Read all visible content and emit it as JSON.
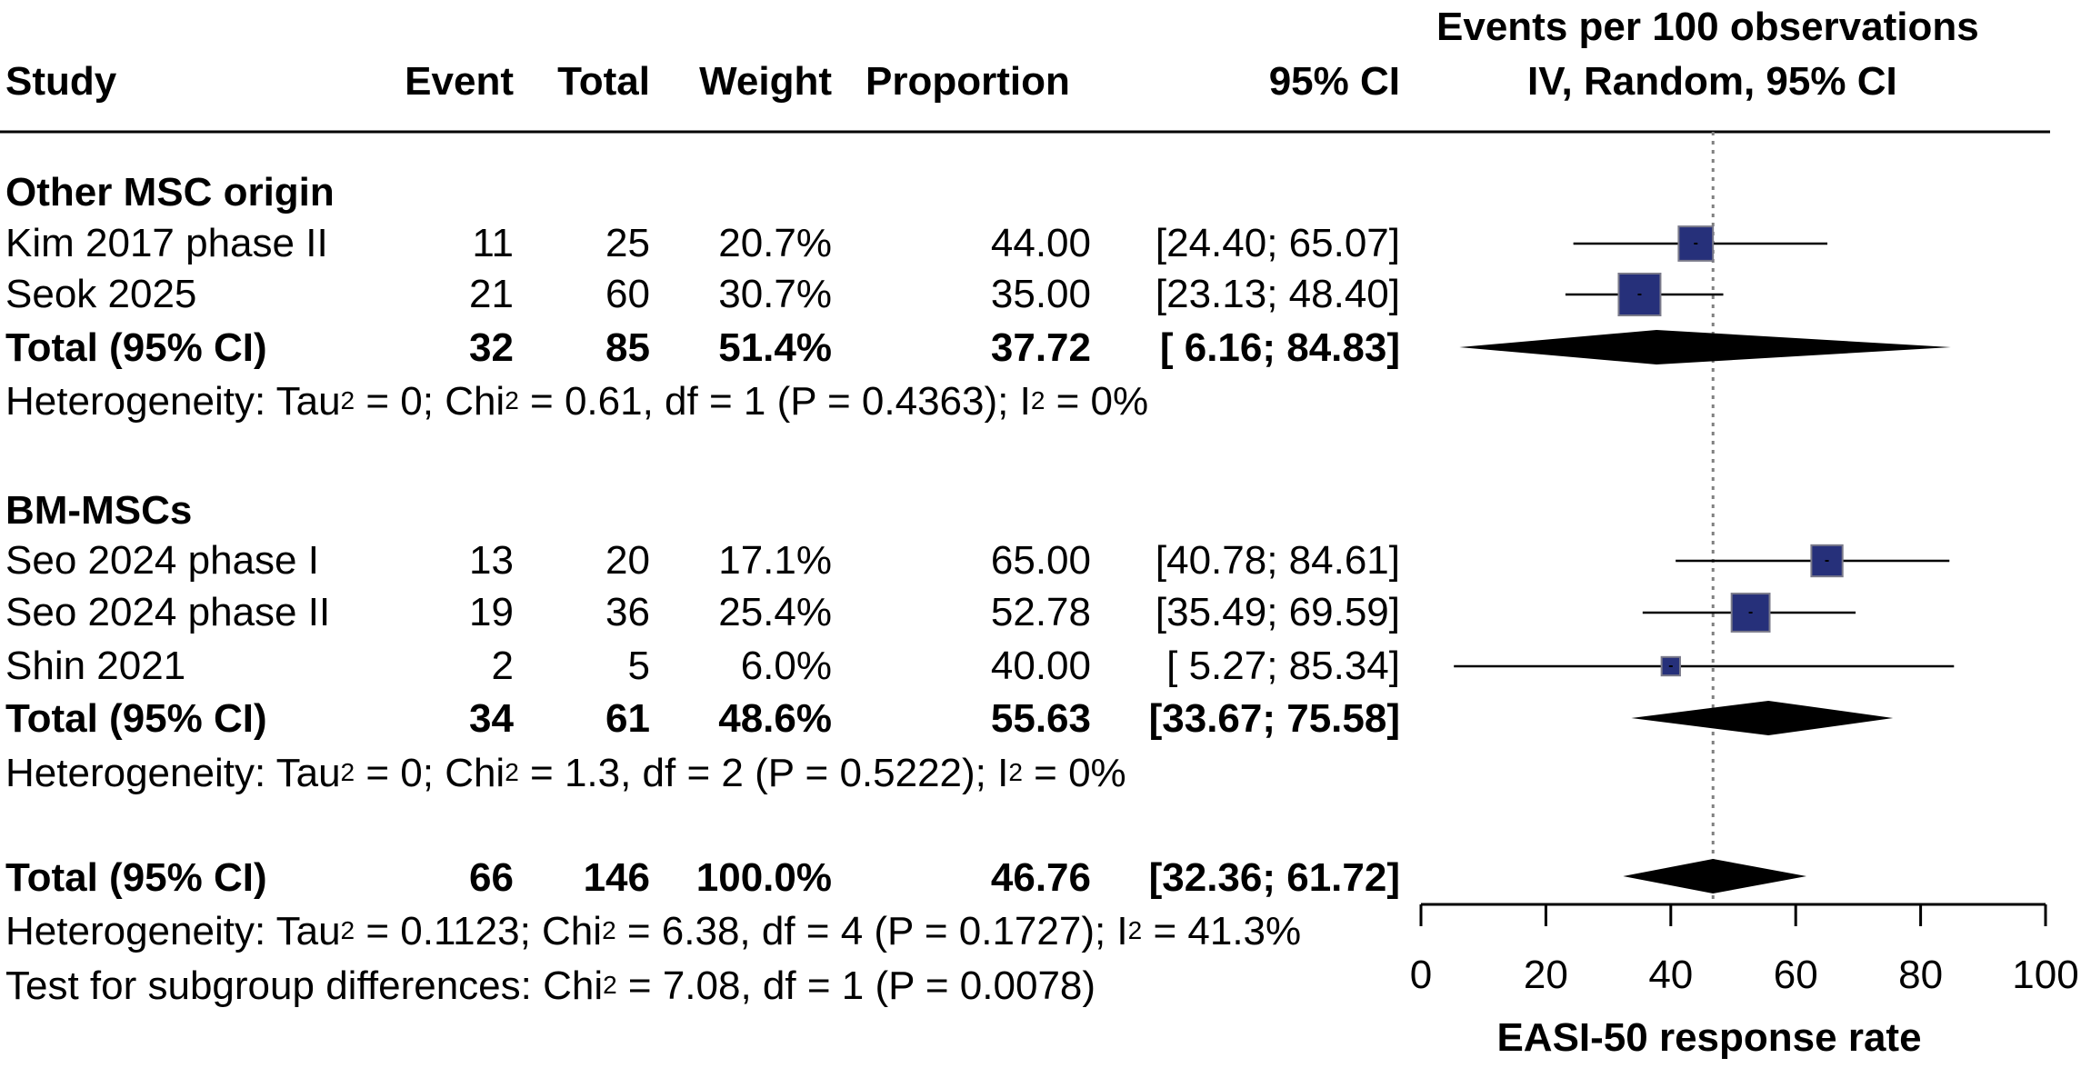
{
  "headers": {
    "study": "Study",
    "event": "Event",
    "total": "Total",
    "weight": "Weight",
    "proportion": "Proportion",
    "ci": "95% CI",
    "plot_line1": "Events per 100 observations",
    "plot_line2": "IV, Random, 95% CI"
  },
  "groups": [
    {
      "name": "Other MSC origin",
      "rows": [
        {
          "study": "Kim 2017 phase II",
          "event": "11",
          "total": "25",
          "weight": "20.7%",
          "proportion": "44.00",
          "ci": "[24.40; 65.07]"
        },
        {
          "study": "Seok 2025",
          "event": "21",
          "total": "60",
          "weight": "30.7%",
          "proportion": "35.00",
          "ci": "[23.13; 48.40]"
        }
      ],
      "total": {
        "label": "Total (95% CI)",
        "event": "32",
        "total": "85",
        "weight": "51.4%",
        "proportion": "37.72",
        "ci": "[ 6.16; 84.83]"
      },
      "het": {
        "p1": "Heterogeneity: Tau",
        "p2": " = 0; Chi",
        "p3": " = 0.61, df = 1 (P = 0.4363); I",
        "p4": " = 0%",
        "sup": "2"
      }
    },
    {
      "name": "BM-MSCs",
      "rows": [
        {
          "study": "Seo 2024 phase I",
          "event": "13",
          "total": "20",
          "weight": "17.1%",
          "proportion": "65.00",
          "ci": "[40.78; 84.61]"
        },
        {
          "study": "Seo 2024 phase II",
          "event": "19",
          "total": "36",
          "weight": "25.4%",
          "proportion": "52.78",
          "ci": "[35.49; 69.59]"
        },
        {
          "study": "Shin 2021",
          "event": "2",
          "total": "5",
          "weight": "6.0%",
          "proportion": "40.00",
          "ci": "[ 5.27; 85.34]"
        }
      ],
      "total": {
        "label": "Total (95% CI)",
        "event": "34",
        "total": "61",
        "weight": "48.6%",
        "proportion": "55.63",
        "ci": "[33.67; 75.58]"
      },
      "het": {
        "p1": "Heterogeneity: Tau",
        "p2": " = 0; Chi",
        "p3": " = 1.3, df = 2 (P = 0.5222); I",
        "p4": " = 0%",
        "sup": "2"
      }
    }
  ],
  "overall": {
    "label": "Total (95% CI)",
    "event": "66",
    "total": "146",
    "weight": "100.0%",
    "proportion": "46.76",
    "ci": "[32.36; 61.72]",
    "het": {
      "p1": "Heterogeneity: Tau",
      "p2": " = 0.1123; Chi",
      "p3": " = 6.38, df = 4 (P = 0.1727); I",
      "p4": " = 41.3%",
      "sup": "2"
    },
    "test": {
      "p1": "Test for subgroup differences: Chi",
      "p2": " = 7.08, df = 1 (P = 0.0078)",
      "sup": "2"
    }
  },
  "colors": {
    "square": "#26307a",
    "square_edge": "#7a7a8a",
    "diamond": "#000000",
    "ref_line": "#808080"
  },
  "chart_data": {
    "type": "forest",
    "xlabel": "EASI-50 response rate",
    "xlim": [
      0,
      100
    ],
    "xticks": [
      0,
      20,
      40,
      60,
      80,
      100
    ],
    "reference_line": 46.76,
    "studies": [
      {
        "study": "Kim 2017 phase II",
        "est": 44.0,
        "lo": 24.4,
        "hi": 65.07,
        "weight": 20.7
      },
      {
        "study": "Seok 2025",
        "est": 35.0,
        "lo": 23.13,
        "hi": 48.4,
        "weight": 30.7
      },
      {
        "study": "Seo 2024 phase I",
        "est": 65.0,
        "lo": 40.78,
        "hi": 84.61,
        "weight": 17.1
      },
      {
        "study": "Seo 2024 phase II",
        "est": 52.78,
        "lo": 35.49,
        "hi": 69.59,
        "weight": 25.4
      },
      {
        "study": "Shin 2021",
        "est": 40.0,
        "lo": 5.27,
        "hi": 85.34,
        "weight": 6.0
      }
    ],
    "pooled": [
      {
        "label": "Other MSC origin",
        "est": 37.72,
        "lo": 6.16,
        "hi": 84.83
      },
      {
        "label": "BM-MSCs",
        "est": 55.63,
        "lo": 33.67,
        "hi": 75.58
      },
      {
        "label": "Overall",
        "est": 46.76,
        "lo": 32.36,
        "hi": 61.72
      }
    ]
  }
}
